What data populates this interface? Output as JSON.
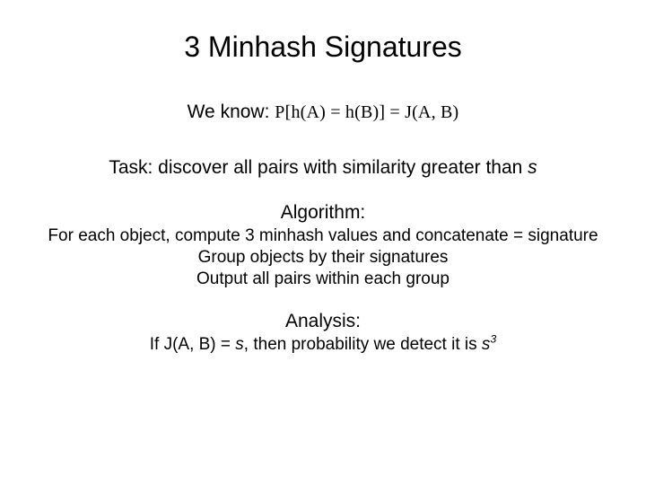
{
  "title": "3 Minhash Signatures",
  "we_know_label": "We know: ",
  "formula": "P[h(A) = h(B)] = J(A, B)",
  "task_prefix": "Task: discover all pairs with similarity greater than ",
  "task_var": "s",
  "algorithm_label": "Algorithm:",
  "algo_lines": [
    "For each object, compute 3 minhash values and concatenate = signature",
    "Group objects by their signatures",
    "Output all pairs within each group"
  ],
  "analysis_label": "Analysis:",
  "analysis_prefix": "If J(A, B) = ",
  "analysis_var1": "s",
  "analysis_mid": ", then probability we detect it is ",
  "analysis_var2": "s",
  "analysis_exp": "3",
  "colors": {
    "background": "#ffffff",
    "text": "#000000"
  },
  "fonts": {
    "main": "Arial",
    "formula": "Times New Roman"
  }
}
